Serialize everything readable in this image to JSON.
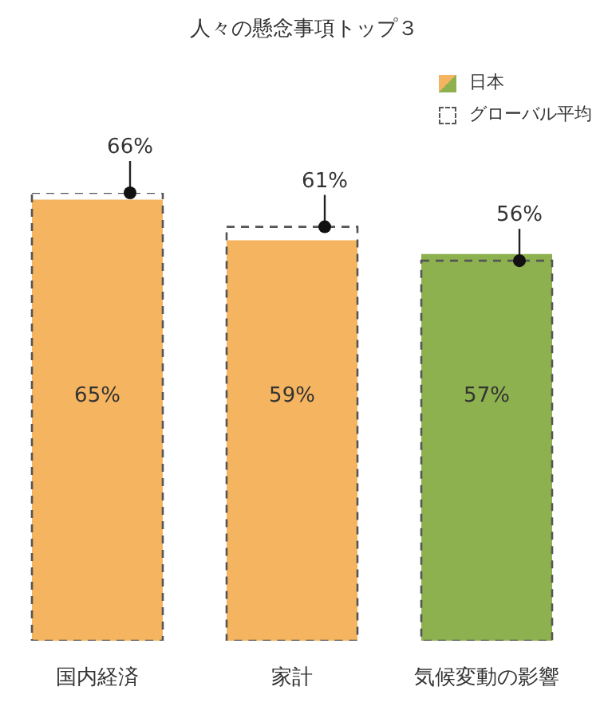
{
  "chart_data": {
    "type": "bar",
    "title": "人々の懸念事項トップ３",
    "categories": [
      "国内経済",
      "家計",
      "気候変動の影響"
    ],
    "legend": "top right",
    "series": [
      {
        "name": "日本",
        "colors": [
          "#f5b45f",
          "#f5b45f",
          "#8eb14f"
        ],
        "values": [
          65,
          59,
          57
        ],
        "value_labels": [
          "65%",
          "59%",
          "57%"
        ]
      },
      {
        "name": "グローバル平均",
        "line_style": "dashed",
        "color": "#555555",
        "values": [
          66,
          61,
          56
        ],
        "value_labels": [
          "66%",
          "61%",
          "56%"
        ]
      }
    ]
  }
}
